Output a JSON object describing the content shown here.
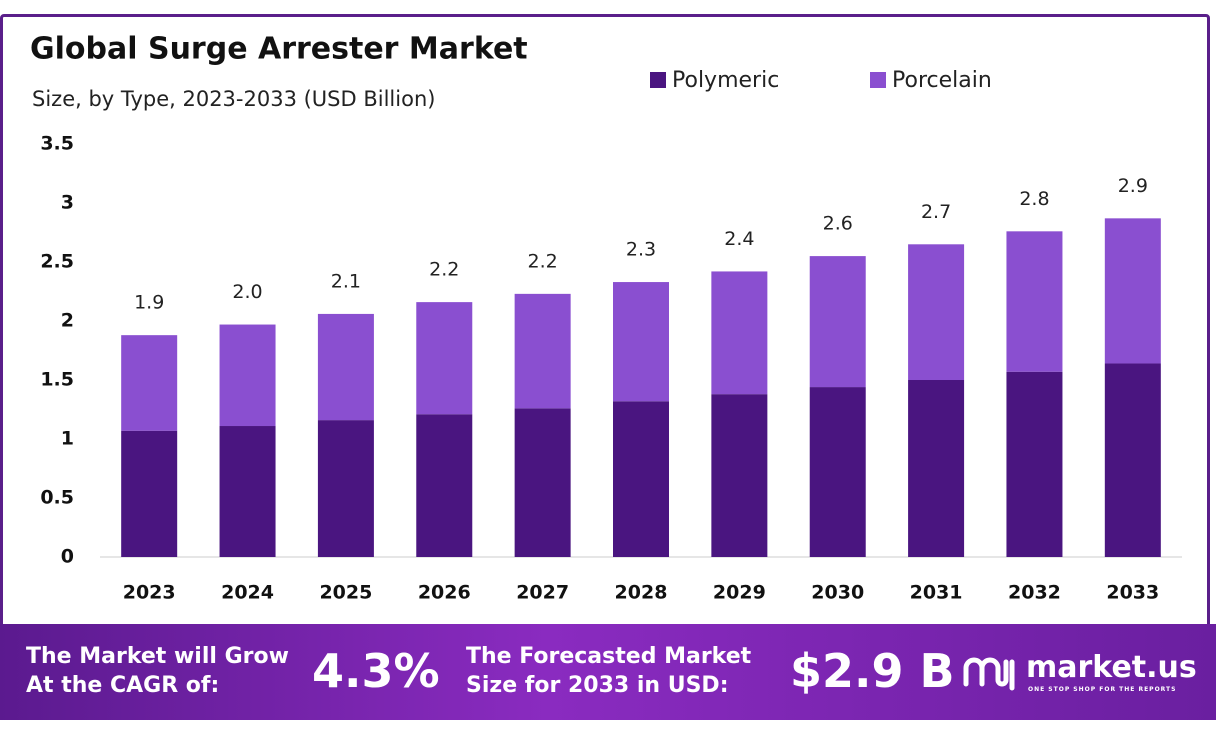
{
  "chart_data": {
    "type": "stacked_bar",
    "title": "Global Surge Arrester Market",
    "subtitle": "Size, by Type, 2023-2033 (USD Billion)",
    "categories": [
      "2023",
      "2024",
      "2025",
      "2026",
      "2027",
      "2028",
      "2029",
      "2030",
      "2031",
      "2032",
      "2033"
    ],
    "series": [
      {
        "name": "Polymeric",
        "color": "#4a1580",
        "values": [
          1.07,
          1.11,
          1.16,
          1.21,
          1.26,
          1.32,
          1.38,
          1.44,
          1.5,
          1.57,
          1.64
        ]
      },
      {
        "name": "Porcelain",
        "color": "#8a4fd0",
        "values": [
          0.81,
          0.86,
          0.9,
          0.95,
          0.97,
          1.01,
          1.04,
          1.11,
          1.15,
          1.19,
          1.23
        ]
      }
    ],
    "totals": {
      "values": [
        1.9,
        2.0,
        2.1,
        2.2,
        2.2,
        2.3,
        2.4,
        2.6,
        2.7,
        2.8,
        2.9
      ],
      "value_labels": [
        "1.9",
        "2.0",
        "2.1",
        "2.2",
        "2.2",
        "2.3",
        "2.4",
        "2.6",
        "2.7",
        "2.8",
        "2.9"
      ]
    },
    "ylim": [
      0,
      3.5
    ],
    "yticks": [
      0,
      0.5,
      1,
      1.5,
      2,
      2.5,
      3,
      3.5
    ],
    "grid": false,
    "legend": "top"
  },
  "footer": {
    "cagr_text": [
      "The Market will Grow",
      "At the CAGR of:"
    ],
    "cagr": "4.3%",
    "forecast_text": [
      "The Forecasted Market",
      "Size for 2033 in USD:"
    ],
    "forecast": "$2.9 B",
    "brand": "market.us",
    "tagline": "ONE STOP SHOP FOR THE REPORTS"
  }
}
